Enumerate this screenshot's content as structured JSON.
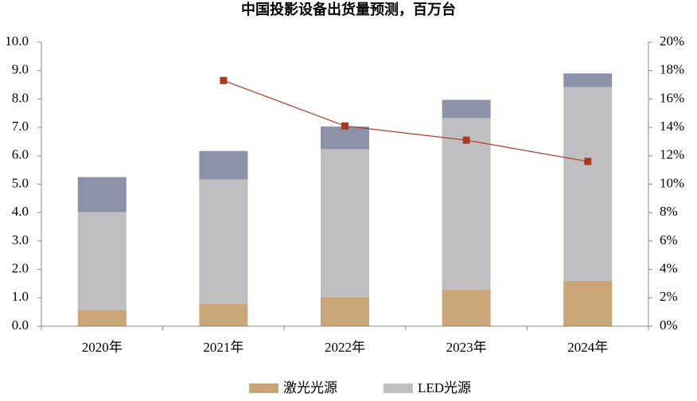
{
  "chart_data": {
    "type": "bar",
    "title": "中国投影设备出货量预测，百万台",
    "categories": [
      "2020年",
      "2021年",
      "2022年",
      "2023年",
      "2024年"
    ],
    "stacked": true,
    "series": [
      {
        "name": "激光光源",
        "color": "#c9a577",
        "values": [
          0.58,
          0.78,
          1.02,
          1.28,
          1.6
        ]
      },
      {
        "name": "LED光源",
        "color": "#bfbfc1",
        "values": [
          3.44,
          4.39,
          5.21,
          6.05,
          6.82
        ]
      },
      {
        "color": "#8c93a8",
        "values": [
          1.23,
          1.0,
          0.8,
          0.64,
          0.48
        ]
      },
      {
        "type": "line",
        "axis": "y2",
        "color": "#a83a22",
        "values": [
          null,
          17.3,
          14.1,
          13.1,
          11.6
        ]
      }
    ],
    "ylim": [
      0,
      10
    ],
    "yticks": [
      {
        "value": 0,
        "label": "0.0"
      },
      {
        "value": 1,
        "label": "1.0"
      },
      {
        "value": 2,
        "label": "2.0"
      },
      {
        "value": 3,
        "label": "3.0"
      },
      {
        "value": 4,
        "label": "4.0"
      },
      {
        "value": 5,
        "label": "5.0"
      },
      {
        "value": 6,
        "label": "6.0"
      },
      {
        "value": 7,
        "label": "7.0"
      },
      {
        "value": 8,
        "label": "8.0"
      },
      {
        "value": 9,
        "label": "9.0"
      },
      {
        "value": 10,
        "label": "10.0"
      }
    ],
    "y2lim": [
      0,
      20
    ],
    "y2ticks": [
      {
        "value": 0,
        "label": "0%"
      },
      {
        "value": 2,
        "label": "2%"
      },
      {
        "value": 4,
        "label": "4%"
      },
      {
        "value": 6,
        "label": "6%"
      },
      {
        "value": 8,
        "label": "8%"
      },
      {
        "value": 10,
        "label": "10%"
      },
      {
        "value": 12,
        "label": "12%"
      },
      {
        "value": 14,
        "label": "14%"
      },
      {
        "value": 16,
        "label": "16%"
      },
      {
        "value": 18,
        "label": "18%"
      },
      {
        "value": 20,
        "label": "20%"
      }
    ],
    "legend": "bottom"
  }
}
